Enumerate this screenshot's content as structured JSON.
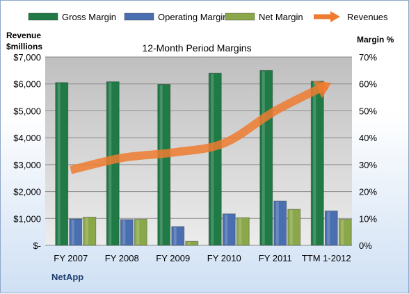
{
  "chart_data": {
    "type": "bar",
    "title": "12-Month Period Margins",
    "company": "NetApp",
    "ylabel_left": [
      "Revenue",
      "$millions"
    ],
    "ylabel_right": "Margin %",
    "categories": [
      "FY 2007",
      "FY 2008",
      "FY 2009",
      "FY 2010",
      "FY 2011",
      "TTM 1-2012"
    ],
    "y_left": {
      "min": 0,
      "max": 7000,
      "step": 1000,
      "tick_labels": [
        "$-",
        "$1,000",
        "$2,000",
        "$3,000",
        "$4,000",
        "$5,000",
        "$6,000",
        "$7,000"
      ]
    },
    "y_right": {
      "min": 0,
      "max": 70,
      "step": 10,
      "tick_labels": [
        "0%",
        "10%",
        "20%",
        "30%",
        "40%",
        "50%",
        "60%",
        "70%"
      ]
    },
    "series": [
      {
        "name": "Gross Margin",
        "kind": "bar",
        "axis": "right",
        "color": "#1f7a45",
        "values": [
          60.5,
          60.8,
          59.8,
          64.0,
          65.0,
          61.0
        ]
      },
      {
        "name": "Operating Margin",
        "kind": "bar",
        "axis": "right",
        "color": "#4a6fb0",
        "values": [
          9.8,
          9.6,
          7.0,
          11.7,
          16.5,
          12.8
        ]
      },
      {
        "name": "Net Margin",
        "kind": "bar",
        "axis": "right",
        "color": "#8aa84a",
        "values": [
          10.5,
          9.7,
          1.5,
          10.3,
          13.4,
          9.7
        ]
      },
      {
        "name": "Revenues",
        "kind": "line",
        "axis": "left",
        "color": "#ee7b30",
        "values": [
          2800,
          3250,
          3450,
          3800,
          5000,
          5950
        ]
      }
    ],
    "grid": true,
    "legend": "top"
  }
}
